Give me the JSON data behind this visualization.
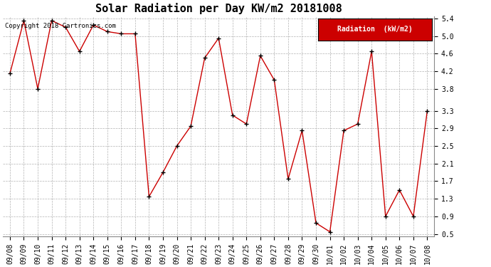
{
  "title": "Solar Radiation per Day KW/m2 20181008",
  "copyright": "Copyright 2018 Cartronics.com",
  "legend_label": "Radiation  (kW/m2)",
  "dates": [
    "09/08",
    "09/09",
    "09/10",
    "09/11",
    "09/12",
    "09/13",
    "09/14",
    "09/15",
    "09/16",
    "09/17",
    "09/18",
    "09/19",
    "09/20",
    "09/21",
    "09/22",
    "09/23",
    "09/24",
    "09/25",
    "09/26",
    "09/27",
    "09/28",
    "09/29",
    "09/30",
    "10/01",
    "10/02",
    "10/03",
    "10/04",
    "10/05",
    "10/06",
    "10/07",
    "10/08"
  ],
  "values": [
    4.15,
    5.35,
    3.8,
    5.35,
    5.2,
    4.65,
    5.25,
    5.1,
    5.05,
    5.05,
    1.35,
    1.9,
    2.5,
    2.95,
    4.5,
    4.95,
    3.2,
    3.0,
    4.55,
    4.0,
    1.75,
    2.85,
    0.75,
    0.55,
    2.85,
    3.0,
    4.65,
    0.9,
    1.5,
    0.9,
    3.3
  ],
  "line_color": "#cc0000",
  "marker": "+",
  "marker_color": "#000000",
  "background_color": "#ffffff",
  "plot_bg_color": "#ffffff",
  "grid_color": "#aaaaaa",
  "ylim_min": 0.45,
  "ylim_max": 5.45,
  "yticks": [
    0.5,
    0.9,
    1.3,
    1.7,
    2.1,
    2.5,
    2.9,
    3.3,
    3.8,
    4.2,
    4.6,
    5.0,
    5.4
  ],
  "title_fontsize": 11,
  "tick_fontsize": 7,
  "copyright_fontsize": 6.5,
  "legend_bg_color": "#cc0000",
  "legend_text_color": "#ffffff",
  "legend_fontsize": 7
}
